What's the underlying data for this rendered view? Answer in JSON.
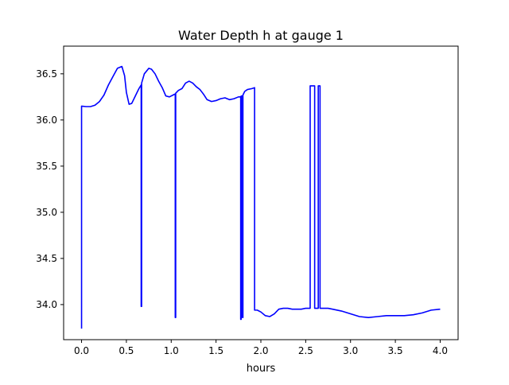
{
  "chart_data": {
    "type": "line",
    "title": "Water Depth h at gauge 1",
    "xlabel": "hours",
    "ylabel": "",
    "xlim": [
      -0.2,
      4.2
    ],
    "ylim": [
      33.62,
      36.8
    ],
    "xticks": [
      0.0,
      0.5,
      1.0,
      1.5,
      2.0,
      2.5,
      3.0,
      3.5,
      4.0
    ],
    "xtick_labels": [
      "0.0",
      "0.5",
      "1.0",
      "1.5",
      "2.0",
      "2.5",
      "3.0",
      "3.5",
      "4.0"
    ],
    "yticks": [
      34.0,
      34.5,
      35.0,
      35.5,
      36.0,
      36.5
    ],
    "ytick_labels": [
      "34.0",
      "34.5",
      "35.0",
      "35.5",
      "36.0",
      "36.5"
    ],
    "grid": false,
    "legend": "none",
    "series": [
      {
        "color": "#0000ff",
        "x": [
          0.0,
          0.0,
          0.05,
          0.1,
          0.15,
          0.2,
          0.25,
          0.3,
          0.35,
          0.4,
          0.45,
          0.48,
          0.5,
          0.53,
          0.56,
          0.6,
          0.64,
          0.665,
          0.665,
          0.67,
          0.67,
          0.7,
          0.75,
          0.78,
          0.82,
          0.86,
          0.9,
          0.94,
          0.98,
          1.02,
          1.04,
          1.045,
          1.045,
          1.05,
          1.05,
          1.08,
          1.12,
          1.16,
          1.2,
          1.24,
          1.28,
          1.32,
          1.36,
          1.4,
          1.45,
          1.5,
          1.55,
          1.6,
          1.65,
          1.7,
          1.75,
          1.775,
          1.775,
          1.78,
          1.78,
          1.795,
          1.795,
          1.8,
          1.8,
          1.82,
          1.85,
          1.9,
          1.93,
          1.93,
          1.96,
          2.0,
          2.05,
          2.1,
          2.15,
          2.2,
          2.25,
          2.3,
          2.35,
          2.4,
          2.45,
          2.5,
          2.55,
          2.55,
          2.6,
          2.6,
          2.64,
          2.64,
          2.66,
          2.66,
          2.7,
          2.75,
          2.8,
          2.9,
          3.0,
          3.1,
          3.2,
          3.3,
          3.4,
          3.5,
          3.6,
          3.7,
          3.8,
          3.9,
          4.0
        ],
        "y": [
          33.74,
          36.15,
          36.145,
          36.145,
          36.16,
          36.2,
          36.27,
          36.38,
          36.47,
          36.56,
          36.58,
          36.48,
          36.3,
          36.17,
          36.18,
          36.26,
          36.34,
          36.38,
          33.98,
          33.98,
          36.4,
          36.5,
          36.56,
          36.55,
          36.5,
          36.42,
          36.35,
          36.26,
          36.25,
          36.27,
          36.28,
          36.28,
          33.86,
          33.86,
          36.29,
          36.32,
          36.34,
          36.4,
          36.42,
          36.4,
          36.36,
          36.33,
          36.28,
          36.22,
          36.2,
          36.21,
          36.23,
          36.24,
          36.22,
          36.23,
          36.25,
          36.25,
          33.84,
          33.84,
          36.26,
          36.26,
          33.86,
          33.86,
          36.27,
          36.31,
          36.33,
          36.34,
          36.35,
          33.94,
          33.94,
          33.92,
          33.88,
          33.87,
          33.9,
          33.95,
          33.96,
          33.96,
          33.95,
          33.95,
          33.95,
          33.96,
          33.96,
          36.37,
          36.37,
          33.96,
          33.96,
          36.37,
          36.37,
          33.96,
          33.96,
          33.96,
          33.95,
          33.93,
          33.9,
          33.87,
          33.86,
          33.87,
          33.88,
          33.88,
          33.88,
          33.89,
          33.91,
          33.94,
          33.95
        ]
      }
    ]
  }
}
